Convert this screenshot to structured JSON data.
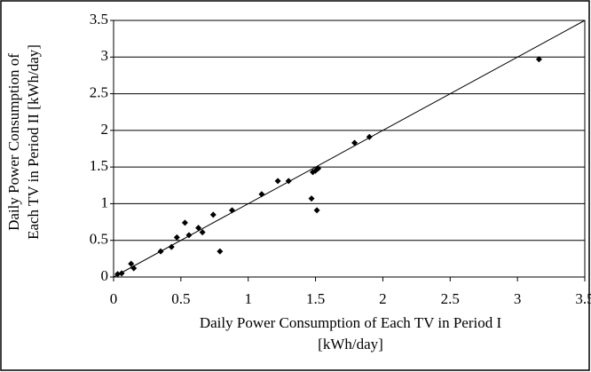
{
  "chart_data": {
    "type": "scatter",
    "x_label": [
      "Daily Power Consumption of Each TV in Period I",
      "[kWh/day]"
    ],
    "y_label": [
      "Daily Power Consumption of",
      "Each TV in Period II [kWh/day]"
    ],
    "x": [
      0.03,
      0.06,
      0.13,
      0.15,
      0.35,
      0.43,
      0.47,
      0.53,
      0.56,
      0.63,
      0.66,
      0.74,
      0.79,
      0.88,
      1.1,
      1.22,
      1.3,
      1.47,
      1.48,
      1.5,
      1.52,
      1.51,
      1.79,
      1.9,
      3.16
    ],
    "y": [
      0.04,
      0.05,
      0.18,
      0.12,
      0.35,
      0.41,
      0.54,
      0.74,
      0.57,
      0.67,
      0.61,
      0.85,
      0.35,
      0.91,
      1.13,
      1.31,
      1.31,
      1.07,
      1.43,
      1.45,
      1.48,
      0.91,
      1.83,
      1.91,
      2.97
    ],
    "color": "#000000",
    "xlim": [
      0,
      3.5
    ],
    "xticks": [
      0,
      0.5,
      1,
      1.5,
      2,
      2.5,
      3,
      3.5
    ],
    "ylim": [
      0,
      3.5
    ],
    "yticks": [
      0,
      0.5,
      1,
      1.5,
      2,
      2.5,
      3,
      3.5
    ],
    "grid": true,
    "identity_line": true
  }
}
